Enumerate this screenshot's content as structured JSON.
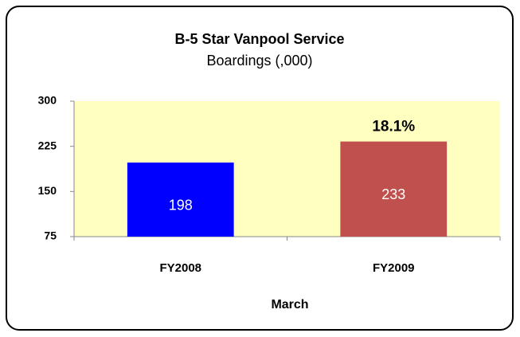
{
  "chart_data": {
    "type": "bar",
    "title": "B-5 Star Vanpool Service",
    "subtitle": "Boardings (,000)",
    "categories": [
      "FY2008",
      "FY2009"
    ],
    "values": [
      198,
      233
    ],
    "colors": [
      "#0000ff",
      "#c0504d"
    ],
    "x_label": "March",
    "annotation": "18.1%",
    "ylim": [
      75,
      300
    ],
    "yticks": [
      75,
      150,
      225,
      300
    ],
    "grid": false
  }
}
